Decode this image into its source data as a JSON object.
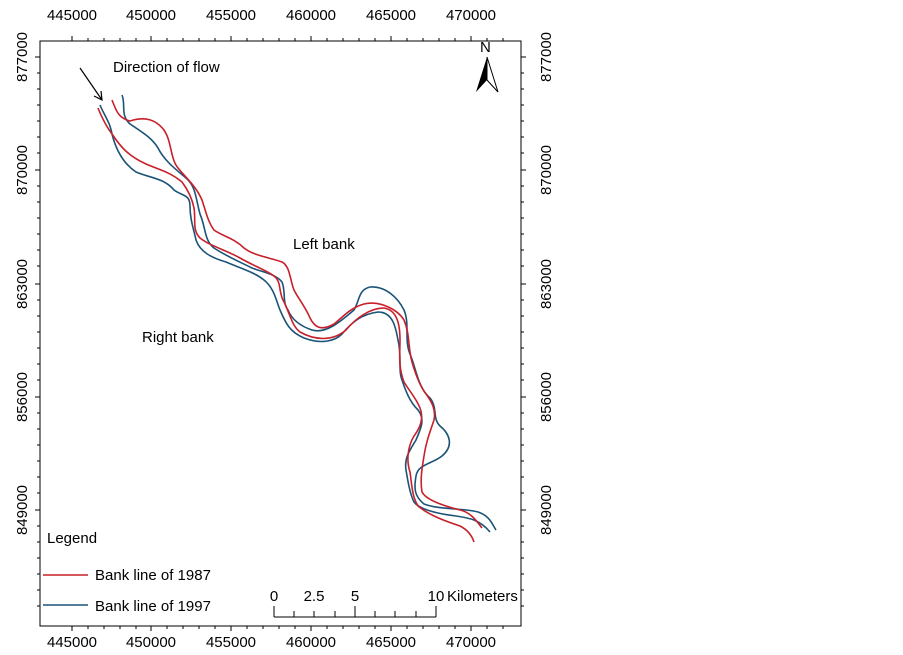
{
  "map": {
    "direction_label": "Direction of flow",
    "left_bank_label": "Left bank",
    "right_bank_label": "Right bank",
    "north_label": "N"
  },
  "axes": {
    "x_ticks": [
      "445000",
      "450000",
      "455000",
      "460000",
      "465000",
      "470000"
    ],
    "y_ticks": [
      "877000",
      "870000",
      "863000",
      "856000",
      "849000"
    ]
  },
  "legend": {
    "title": "Legend",
    "items": [
      {
        "label": "Bank line of 1987",
        "color": "#c8202a"
      },
      {
        "label": "Bank line of 1997",
        "color": "#1b5478"
      }
    ]
  },
  "scale_bar": {
    "labels": [
      "0",
      "2.5",
      "5",
      "10"
    ],
    "unit": "Kilometers"
  }
}
